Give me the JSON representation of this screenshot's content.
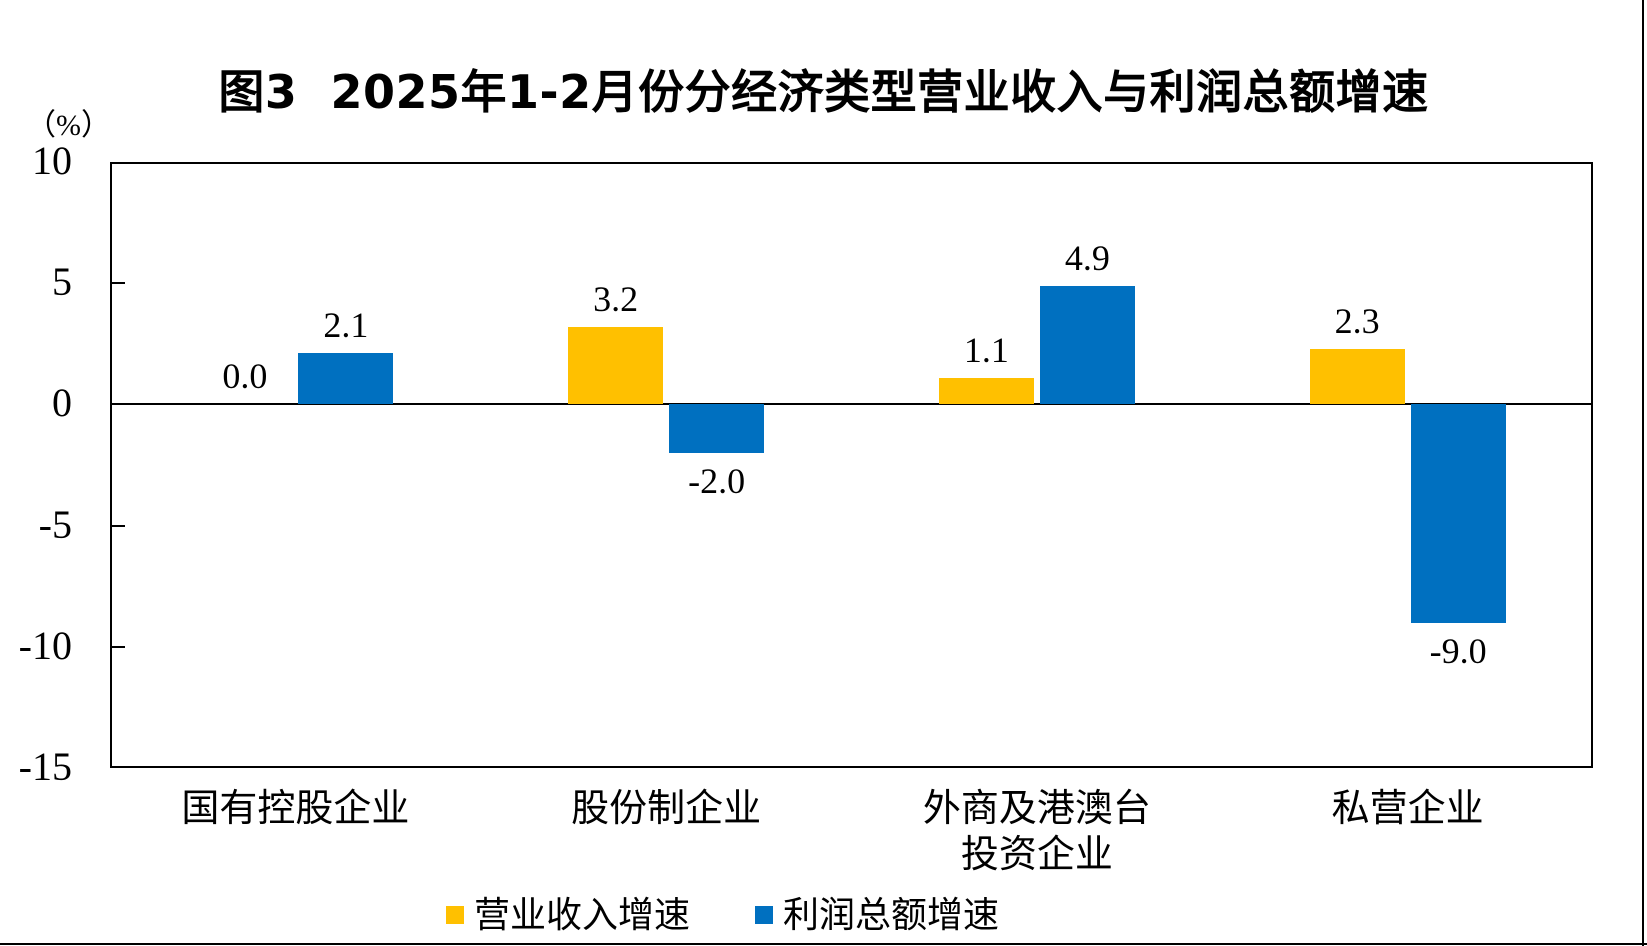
{
  "title": "图3  2025年1-2月份分经济类型营业收入与利润总额增速",
  "chart_data": {
    "type": "bar",
    "title": "图3 2025年1-2月份分经济类型营业收入与利润总额增速",
    "ylabel": "（%）",
    "xlabel": "",
    "ylim": [
      -15,
      10
    ],
    "y_ticks": [
      10,
      5,
      0,
      -5,
      -10,
      -15
    ],
    "grid": false,
    "legend_position": "bottom",
    "background": "#FFFFFF",
    "categories": [
      "国有控股企业",
      "股份制企业",
      "外商及港澳台投资企业",
      "私营企业"
    ],
    "category_label_lines": [
      [
        "国有控股企业"
      ],
      [
        "股份制企业"
      ],
      [
        "外商及港澳台",
        "投资企业"
      ],
      [
        "私营企业"
      ]
    ],
    "series": [
      {
        "name": "营业收入增速",
        "color": "#FFC000",
        "values": [
          0.0,
          3.2,
          1.1,
          2.3
        ],
        "labels": [
          "0.0",
          "3.2",
          "1.1",
          "2.3"
        ]
      },
      {
        "name": "利润总额增速",
        "color": "#0070C0",
        "values": [
          2.1,
          -2.0,
          4.9,
          -9.0
        ],
        "labels": [
          "2.1",
          "-2.0",
          "4.9",
          "-9.0"
        ]
      }
    ]
  }
}
